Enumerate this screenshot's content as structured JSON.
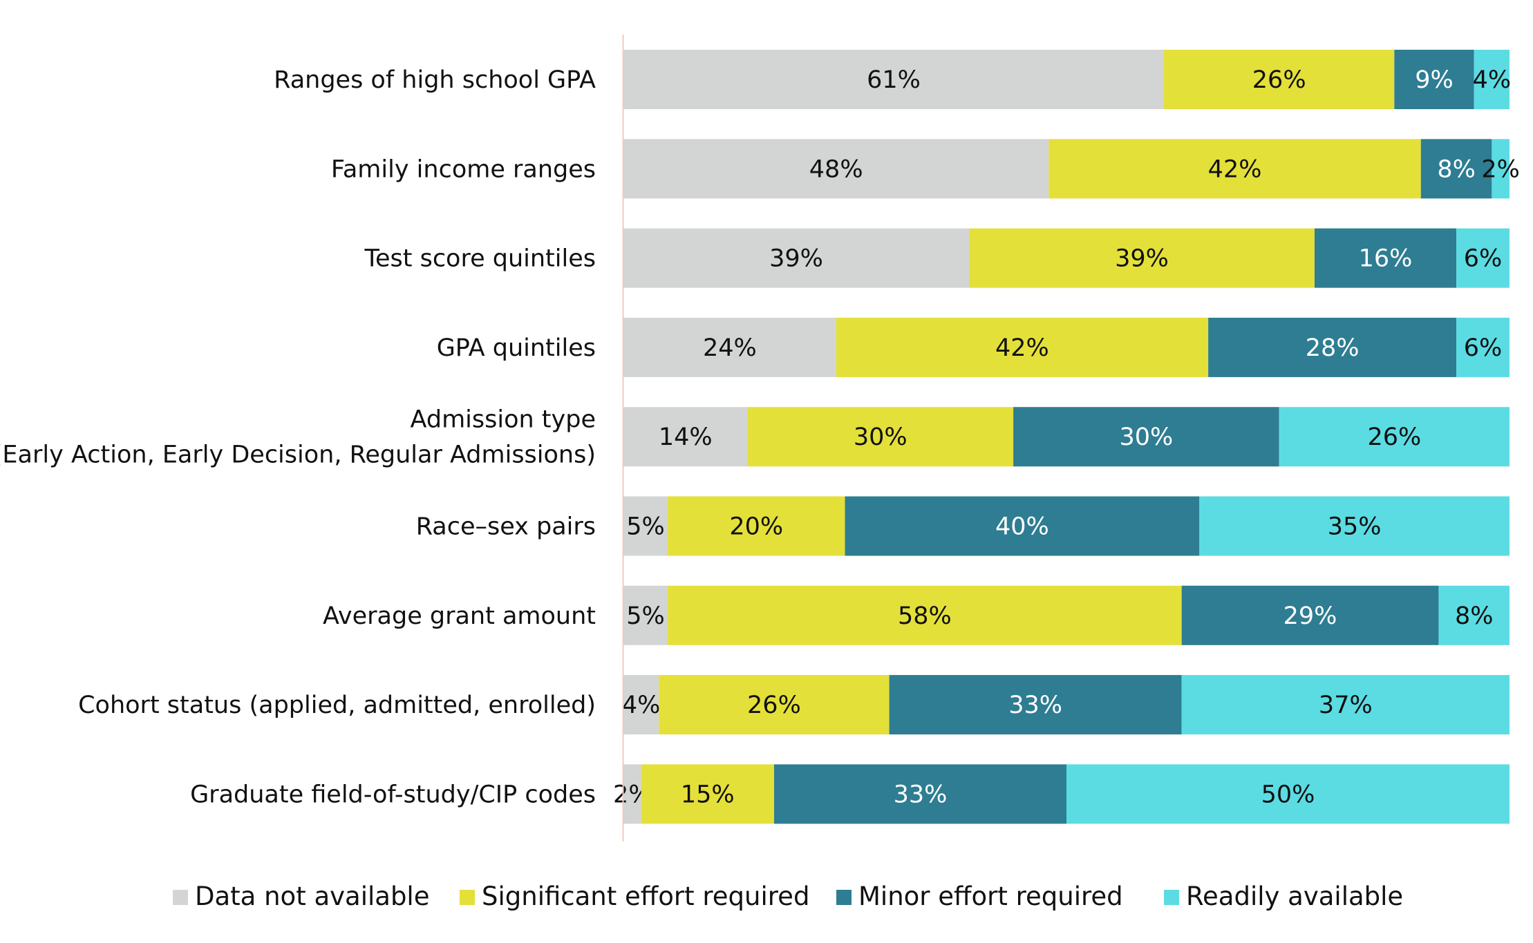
{
  "chart_data": {
    "type": "bar",
    "orientation": "horizontal",
    "stacked": true,
    "percent_stacked": true,
    "title": "",
    "xlabel": "",
    "ylabel": "",
    "xlim": [
      0,
      100
    ],
    "grid": false,
    "legend_position": "bottom",
    "categories": [
      [
        "Ranges of high school GPA"
      ],
      [
        "Family income ranges"
      ],
      [
        "Test score quintiles"
      ],
      [
        "GPA quintiles"
      ],
      [
        "Admission type",
        "(Early Action, Early Decision, Regular Admissions)"
      ],
      [
        "Race–sex pairs"
      ],
      [
        "Average grant amount"
      ],
      [
        "Cohort status (applied, admitted, enrolled)"
      ],
      [
        "Graduate field-of-study/CIP codes"
      ]
    ],
    "series": [
      {
        "name": "Data not available",
        "color": "#d3d5d4",
        "label_color": "#111111",
        "values": [
          61,
          48,
          39,
          24,
          14,
          5,
          5,
          4,
          2
        ]
      },
      {
        "name": "Significant effort required",
        "color": "#e4e03a",
        "label_color": "#111111",
        "values": [
          26,
          42,
          39,
          42,
          30,
          20,
          58,
          26,
          15
        ]
      },
      {
        "name": "Minor effort required",
        "color": "#2e7d92",
        "label_color": "#ffffff",
        "values": [
          9,
          8,
          16,
          28,
          30,
          40,
          29,
          33,
          33
        ]
      },
      {
        "name": "Readily available",
        "color": "#5bdce3",
        "label_color": "#111111",
        "values": [
          4,
          2,
          6,
          6,
          26,
          35,
          8,
          37,
          50
        ]
      }
    ],
    "value_suffix": "%",
    "axis_line_color": "#f3c9c0"
  }
}
